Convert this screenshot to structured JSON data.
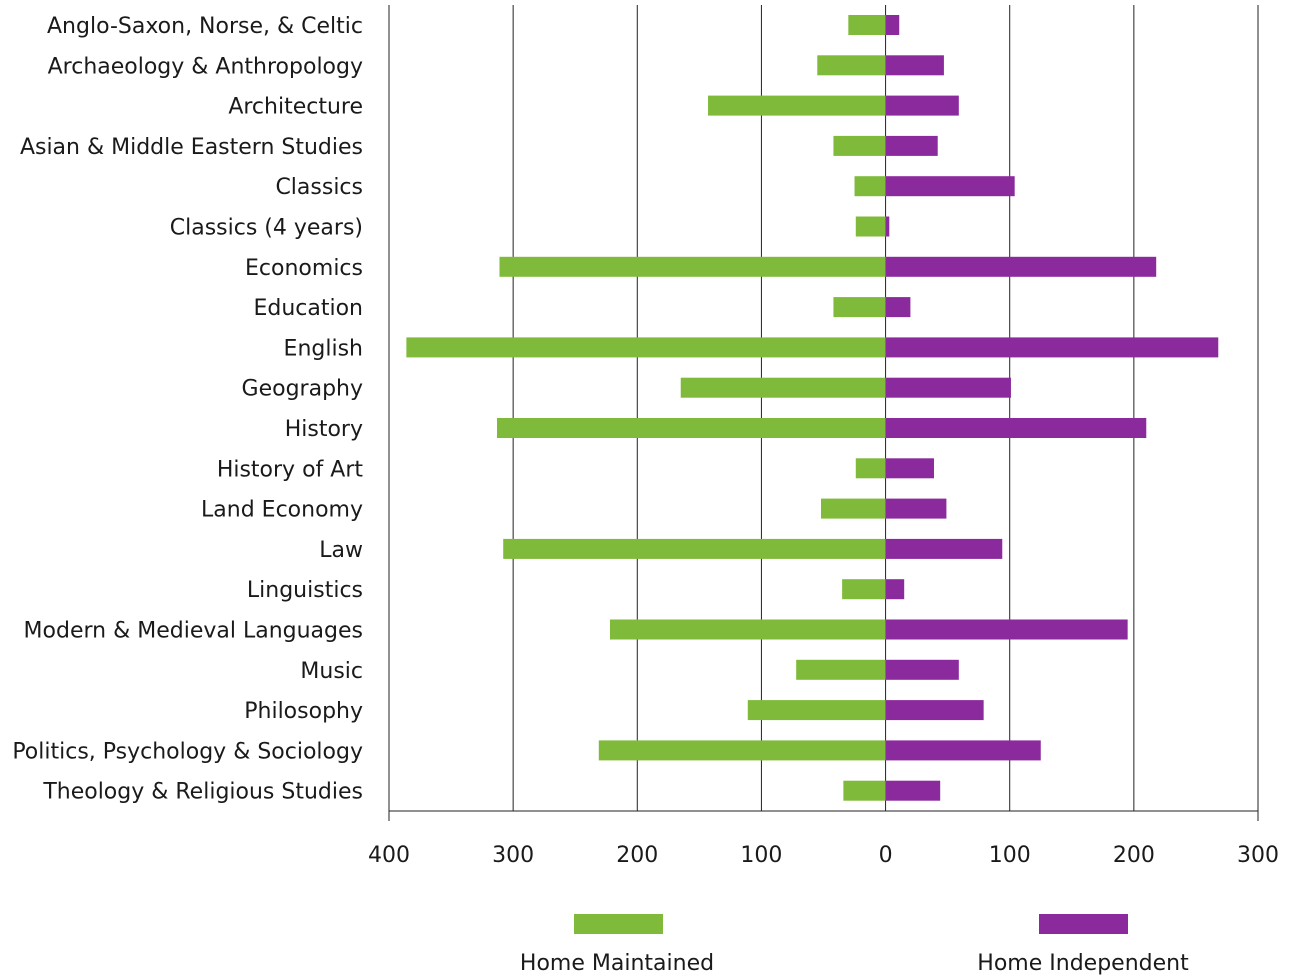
{
  "colors": {
    "maintained": "#7fba3a",
    "independent": "#8b2a9c",
    "grid": "#222222"
  },
  "chart_data": {
    "type": "bar",
    "orientation": "horizontal-diverging",
    "categories": [
      "Anglo-Saxon, Norse, & Celtic",
      "Archaeology & Anthropology",
      "Architecture",
      "Asian & Middle Eastern Studies",
      "Classics",
      "Classics (4 years)",
      "Economics",
      "Education",
      "English",
      "Geography",
      "History",
      "History of Art",
      "Land Economy",
      "Law",
      "Linguistics",
      "Modern & Medieval Languages",
      "Music",
      "Philosophy",
      "Politics, Psychology & Sociology",
      "Theology & Religious Studies"
    ],
    "series": [
      {
        "name": "Home Maintained",
        "side": "left",
        "values": [
          30,
          55,
          143,
          42,
          25,
          24,
          311,
          42,
          386,
          165,
          313,
          24,
          52,
          308,
          35,
          222,
          72,
          111,
          231,
          34
        ]
      },
      {
        "name": "Home Independent",
        "side": "right",
        "values": [
          11,
          47,
          59,
          42,
          104,
          3,
          218,
          20,
          268,
          101,
          210,
          39,
          49,
          94,
          15,
          195,
          59,
          79,
          125,
          44
        ]
      }
    ],
    "xlim": [
      -400,
      300
    ],
    "xticks": [
      -400,
      -300,
      -200,
      -100,
      0,
      100,
      200,
      300
    ],
    "xtick_labels": [
      "400",
      "300",
      "200",
      "100",
      "0",
      "100",
      "200",
      "300"
    ],
    "grid": true,
    "legend_position": "bottom"
  }
}
